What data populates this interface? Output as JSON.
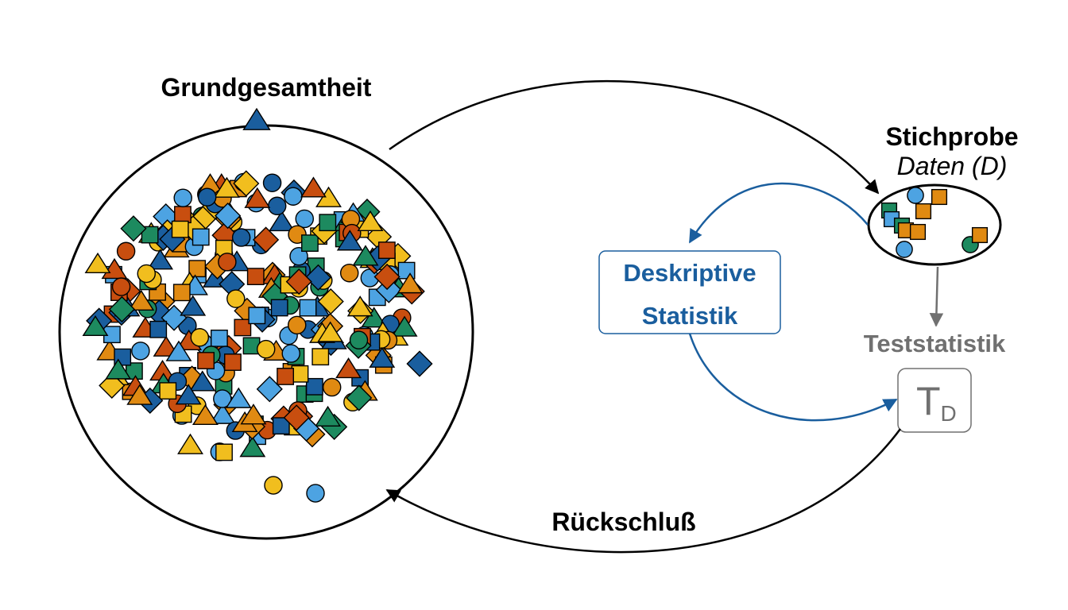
{
  "population": {
    "title": "Grundgesamtheit"
  },
  "sample": {
    "title": "Stichprobe",
    "subtitle": "Daten (D)"
  },
  "descriptive": {
    "line1": "Deskriptive",
    "line2": "Statistik"
  },
  "test_statistic": {
    "title": "Teststatistik",
    "symbol": "T",
    "subscript": "D"
  },
  "inference": {
    "label": "Rückschluß"
  },
  "colors": {
    "blue": "#1a5e9e",
    "light_blue": "#4da3e2",
    "green": "#1d8a5f",
    "orange": "#e08a12",
    "vermilion": "#c84e0f",
    "yellow": "#f1be1e",
    "gray": "#707070",
    "black": "#000000"
  },
  "marker_shapes": [
    "circle",
    "square",
    "triangle",
    "diamond"
  ]
}
